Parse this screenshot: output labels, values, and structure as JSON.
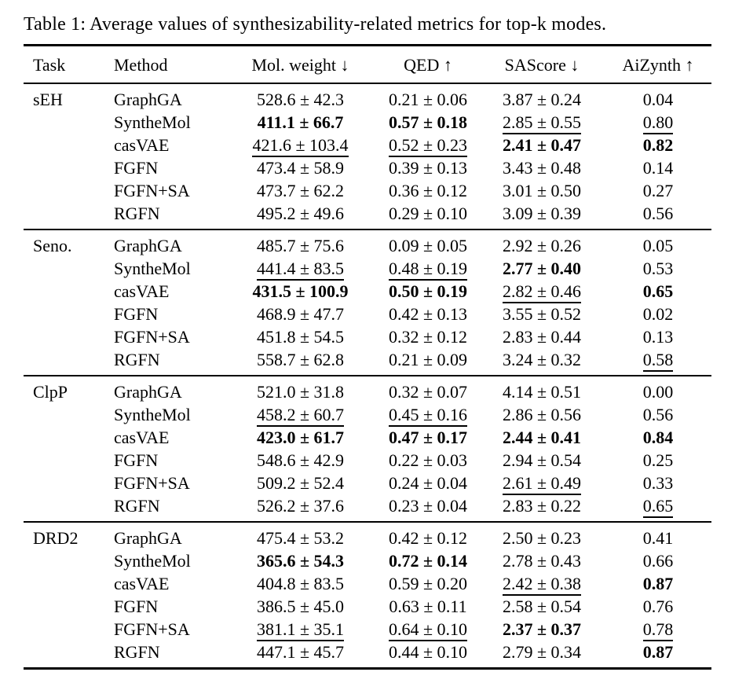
{
  "page": {
    "caption": "Table 1: Average values of synthesizability-related metrics for top-k modes."
  },
  "table": {
    "columns": [
      "Task",
      "Method",
      "Mol. weight ↓",
      "QED ↑",
      "SAScore ↓",
      "AiZynth ↑"
    ],
    "groups": [
      {
        "task": "sEH",
        "rows": [
          {
            "method": "GraphGA",
            "cells": [
              {
                "text": "528.6 ± 42.3",
                "style": "plain"
              },
              {
                "text": "0.21 ± 0.06",
                "style": "plain"
              },
              {
                "text": "3.87 ± 0.24",
                "style": "plain"
              },
              {
                "text": "0.04",
                "style": "plain"
              }
            ]
          },
          {
            "method": "SyntheMol",
            "cells": [
              {
                "text": "411.1 ± 66.7",
                "style": "bold"
              },
              {
                "text": "0.57 ± 0.18",
                "style": "bold"
              },
              {
                "text": "2.85 ± 0.55",
                "style": "underline"
              },
              {
                "text": "0.80",
                "style": "underline"
              }
            ]
          },
          {
            "method": "casVAE",
            "cells": [
              {
                "text": "421.6 ± 103.4",
                "style": "underline"
              },
              {
                "text": "0.52 ± 0.23",
                "style": "underline"
              },
              {
                "text": "2.41 ± 0.47",
                "style": "bold"
              },
              {
                "text": "0.82",
                "style": "bold"
              }
            ]
          },
          {
            "method": "FGFN",
            "cells": [
              {
                "text": "473.4 ± 58.9",
                "style": "plain"
              },
              {
                "text": "0.39 ± 0.13",
                "style": "plain"
              },
              {
                "text": "3.43 ± 0.48",
                "style": "plain"
              },
              {
                "text": "0.14",
                "style": "plain"
              }
            ]
          },
          {
            "method": "FGFN+SA",
            "cells": [
              {
                "text": "473.7 ± 62.2",
                "style": "plain"
              },
              {
                "text": "0.36 ± 0.12",
                "style": "plain"
              },
              {
                "text": "3.01 ± 0.50",
                "style": "plain"
              },
              {
                "text": "0.27",
                "style": "plain"
              }
            ]
          },
          {
            "method": "RGFN",
            "cells": [
              {
                "text": "495.2 ± 49.6",
                "style": "plain"
              },
              {
                "text": "0.29 ± 0.10",
                "style": "plain"
              },
              {
                "text": "3.09 ± 0.39",
                "style": "plain"
              },
              {
                "text": "0.56",
                "style": "plain"
              }
            ]
          }
        ]
      },
      {
        "task": "Seno.",
        "rows": [
          {
            "method": "GraphGA",
            "cells": [
              {
                "text": "485.7 ± 75.6",
                "style": "plain"
              },
              {
                "text": "0.09 ± 0.05",
                "style": "plain"
              },
              {
                "text": "2.92 ± 0.26",
                "style": "plain"
              },
              {
                "text": "0.05",
                "style": "plain"
              }
            ]
          },
          {
            "method": "SyntheMol",
            "cells": [
              {
                "text": "441.4 ± 83.5",
                "style": "underline"
              },
              {
                "text": "0.48 ± 0.19",
                "style": "underline"
              },
              {
                "text": "2.77 ± 0.40",
                "style": "bold"
              },
              {
                "text": "0.53",
                "style": "plain"
              }
            ]
          },
          {
            "method": "casVAE",
            "cells": [
              {
                "text": "431.5 ± 100.9",
                "style": "bold"
              },
              {
                "text": "0.50 ± 0.19",
                "style": "bold"
              },
              {
                "text": "2.82 ± 0.46",
                "style": "underline"
              },
              {
                "text": "0.65",
                "style": "bold"
              }
            ]
          },
          {
            "method": "FGFN",
            "cells": [
              {
                "text": "468.9 ± 47.7",
                "style": "plain"
              },
              {
                "text": "0.42 ± 0.13",
                "style": "plain"
              },
              {
                "text": "3.55 ± 0.52",
                "style": "plain"
              },
              {
                "text": "0.02",
                "style": "plain"
              }
            ]
          },
          {
            "method": "FGFN+SA",
            "cells": [
              {
                "text": "451.8 ± 54.5",
                "style": "plain"
              },
              {
                "text": "0.32 ± 0.12",
                "style": "plain"
              },
              {
                "text": "2.83 ± 0.44",
                "style": "plain"
              },
              {
                "text": "0.13",
                "style": "plain"
              }
            ]
          },
          {
            "method": "RGFN",
            "cells": [
              {
                "text": "558.7 ± 62.8",
                "style": "plain"
              },
              {
                "text": "0.21 ± 0.09",
                "style": "plain"
              },
              {
                "text": "3.24 ± 0.32",
                "style": "plain"
              },
              {
                "text": "0.58",
                "style": "underline"
              }
            ]
          }
        ]
      },
      {
        "task": "ClpP",
        "rows": [
          {
            "method": "GraphGA",
            "cells": [
              {
                "text": "521.0 ± 31.8",
                "style": "plain"
              },
              {
                "text": "0.32 ± 0.07",
                "style": "plain"
              },
              {
                "text": "4.14 ± 0.51",
                "style": "plain"
              },
              {
                "text": "0.00",
                "style": "plain"
              }
            ]
          },
          {
            "method": "SyntheMol",
            "cells": [
              {
                "text": "458.2 ± 60.7",
                "style": "underline"
              },
              {
                "text": "0.45 ± 0.16",
                "style": "underline"
              },
              {
                "text": "2.86 ± 0.56",
                "style": "plain"
              },
              {
                "text": "0.56",
                "style": "plain"
              }
            ]
          },
          {
            "method": "casVAE",
            "cells": [
              {
                "text": "423.0 ± 61.7",
                "style": "bold"
              },
              {
                "text": "0.47 ± 0.17",
                "style": "bold"
              },
              {
                "text": "2.44 ± 0.41",
                "style": "bold"
              },
              {
                "text": "0.84",
                "style": "bold"
              }
            ]
          },
          {
            "method": "FGFN",
            "cells": [
              {
                "text": "548.6 ± 42.9",
                "style": "plain"
              },
              {
                "text": "0.22 ± 0.03",
                "style": "plain"
              },
              {
                "text": "2.94 ± 0.54",
                "style": "plain"
              },
              {
                "text": "0.25",
                "style": "plain"
              }
            ]
          },
          {
            "method": "FGFN+SA",
            "cells": [
              {
                "text": "509.2 ± 52.4",
                "style": "plain"
              },
              {
                "text": "0.24 ± 0.04",
                "style": "plain"
              },
              {
                "text": "2.61 ± 0.49",
                "style": "underline"
              },
              {
                "text": "0.33",
                "style": "plain"
              }
            ]
          },
          {
            "method": "RGFN",
            "cells": [
              {
                "text": "526.2 ± 37.6",
                "style": "plain"
              },
              {
                "text": "0.23 ± 0.04",
                "style": "plain"
              },
              {
                "text": "2.83 ± 0.22",
                "style": "plain"
              },
              {
                "text": "0.65",
                "style": "underline"
              }
            ]
          }
        ]
      },
      {
        "task": "DRD2",
        "rows": [
          {
            "method": "GraphGA",
            "cells": [
              {
                "text": "475.4 ± 53.2",
                "style": "plain"
              },
              {
                "text": "0.42 ± 0.12",
                "style": "plain"
              },
              {
                "text": "2.50 ± 0.23",
                "style": "plain"
              },
              {
                "text": "0.41",
                "style": "plain"
              }
            ]
          },
          {
            "method": "SyntheMol",
            "cells": [
              {
                "text": "365.6 ± 54.3",
                "style": "bold"
              },
              {
                "text": "0.72 ± 0.14",
                "style": "bold"
              },
              {
                "text": "2.78 ± 0.43",
                "style": "plain"
              },
              {
                "text": "0.66",
                "style": "plain"
              }
            ]
          },
          {
            "method": "casVAE",
            "cells": [
              {
                "text": "404.8 ± 83.5",
                "style": "plain"
              },
              {
                "text": "0.59 ± 0.20",
                "style": "plain"
              },
              {
                "text": "2.42 ± 0.38",
                "style": "underline"
              },
              {
                "text": "0.87",
                "style": "bold"
              }
            ]
          },
          {
            "method": "FGFN",
            "cells": [
              {
                "text": "386.5 ± 45.0",
                "style": "plain"
              },
              {
                "text": "0.63 ± 0.11",
                "style": "plain"
              },
              {
                "text": "2.58 ± 0.54",
                "style": "plain"
              },
              {
                "text": "0.76",
                "style": "plain"
              }
            ]
          },
          {
            "method": "FGFN+SA",
            "cells": [
              {
                "text": "381.1 ± 35.1",
                "style": "underline"
              },
              {
                "text": "0.64 ± 0.10",
                "style": "underline"
              },
              {
                "text": "2.37 ± 0.37",
                "style": "bold"
              },
              {
                "text": "0.78",
                "style": "underline"
              }
            ]
          },
          {
            "method": "RGFN",
            "cells": [
              {
                "text": "447.1 ± 45.7",
                "style": "plain"
              },
              {
                "text": "0.44 ± 0.10",
                "style": "plain"
              },
              {
                "text": "2.79 ± 0.34",
                "style": "plain"
              },
              {
                "text": "0.87",
                "style": "bold"
              }
            ]
          }
        ]
      }
    ]
  }
}
